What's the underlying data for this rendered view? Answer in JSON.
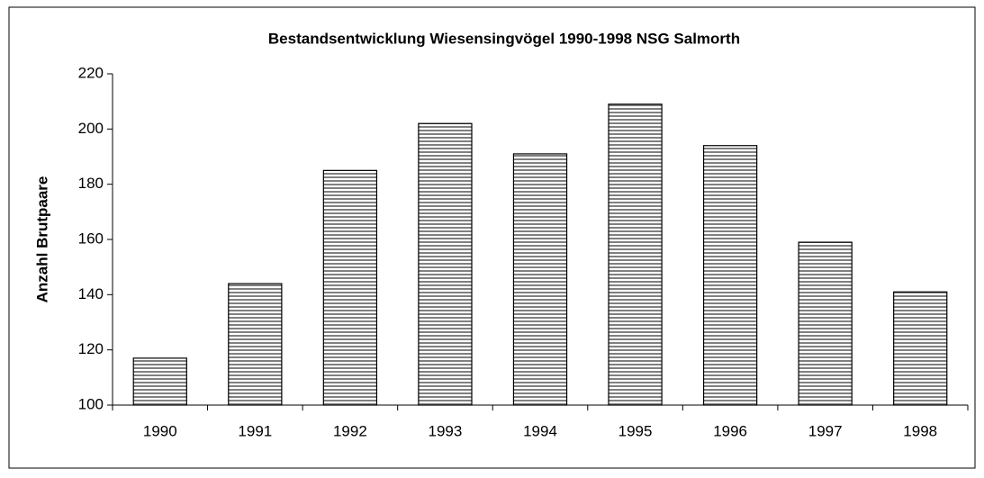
{
  "chart_data": {
    "type": "bar",
    "title": "Bestandsentwicklung Wiesensingvögel 1990-1998 NSG Salmorth",
    "y_label": "Anzahl Brutpaare",
    "categories": [
      "1990",
      "1991",
      "1992",
      "1993",
      "1994",
      "1995",
      "1996",
      "1997",
      "1998"
    ],
    "values": [
      117,
      144,
      185,
      202,
      191,
      209,
      194,
      159,
      141
    ],
    "color": "#808080",
    "ylim": [
      100,
      220
    ],
    "yticks": [
      100,
      120,
      140,
      160,
      180,
      200,
      220
    ],
    "grid": false
  }
}
